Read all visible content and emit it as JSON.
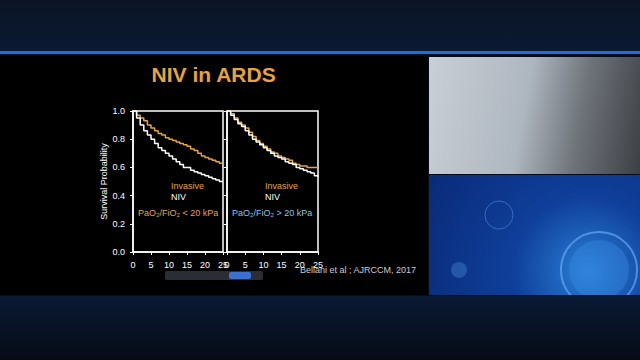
{
  "slide": {
    "title": "NIV in ARDS",
    "citation": "Bellani et al ; AJRCCM, 2017"
  },
  "chart_data": [
    {
      "type": "line",
      "ylabel": "Survival Probability",
      "line_style": "step",
      "x": [
        0,
        1,
        2,
        3,
        4,
        5,
        6,
        7,
        8,
        9,
        10,
        11,
        12,
        13,
        14,
        15,
        16,
        17,
        18,
        19,
        20,
        21,
        22,
        23,
        24,
        25
      ],
      "series": [
        {
          "name": "Invasive",
          "color": "#e8a33c",
          "values": [
            1.0,
            0.97,
            0.95,
            0.93,
            0.9,
            0.88,
            0.86,
            0.84,
            0.83,
            0.81,
            0.8,
            0.79,
            0.78,
            0.77,
            0.76,
            0.75,
            0.73,
            0.72,
            0.7,
            0.68,
            0.67,
            0.66,
            0.65,
            0.64,
            0.63,
            0.62
          ]
        },
        {
          "name": "NIV",
          "color": "#ffffff",
          "values": [
            1.0,
            0.95,
            0.9,
            0.86,
            0.83,
            0.8,
            0.77,
            0.74,
            0.72,
            0.7,
            0.68,
            0.66,
            0.64,
            0.62,
            0.6,
            0.6,
            0.58,
            0.57,
            0.56,
            0.55,
            0.54,
            0.53,
            0.52,
            0.51,
            0.5,
            0.5
          ]
        }
      ],
      "annotations": [
        {
          "text": "PaO₂/FiO₂ < 20 kPa",
          "color": "#e8a33c"
        }
      ],
      "xlim": [
        0,
        25
      ],
      "xticks": [
        0,
        5,
        10,
        15,
        20,
        25
      ],
      "ylim": [
        0,
        1
      ],
      "yticks": [
        {
          "value": 0,
          "label": "0.0"
        },
        {
          "value": 0.2,
          "label": "0.2"
        },
        {
          "value": 0.4,
          "label": "0.4"
        },
        {
          "value": 0.6,
          "label": "0.6"
        },
        {
          "value": 0.8,
          "label": "0.8"
        },
        {
          "value": 1,
          "label": "1.0"
        }
      ]
    },
    {
      "type": "line",
      "line_style": "step",
      "tick_labels": "x",
      "x": [
        0,
        1,
        2,
        3,
        4,
        5,
        6,
        7,
        8,
        9,
        10,
        11,
        12,
        13,
        14,
        15,
        16,
        17,
        18,
        19,
        20,
        21,
        22,
        23,
        24,
        25
      ],
      "series": [
        {
          "name": "Invasive",
          "color": "#e8a33c",
          "values": [
            1.0,
            0.98,
            0.95,
            0.92,
            0.9,
            0.88,
            0.85,
            0.82,
            0.79,
            0.77,
            0.75,
            0.73,
            0.71,
            0.7,
            0.68,
            0.67,
            0.66,
            0.65,
            0.63,
            0.62,
            0.61,
            0.61,
            0.6,
            0.6,
            0.6,
            0.6
          ]
        },
        {
          "name": "NIV",
          "color": "#ffffff",
          "values": [
            1.0,
            0.97,
            0.94,
            0.91,
            0.89,
            0.86,
            0.83,
            0.8,
            0.78,
            0.76,
            0.74,
            0.72,
            0.7,
            0.68,
            0.67,
            0.66,
            0.64,
            0.63,
            0.62,
            0.6,
            0.59,
            0.58,
            0.57,
            0.56,
            0.54,
            0.53
          ]
        }
      ],
      "annotations": [
        {
          "text": "PaO₂/FiO₂ > 20 kPa",
          "color": "#7fc8e8"
        }
      ],
      "xlim": [
        0,
        25
      ],
      "xticks": [
        0,
        5,
        10,
        15,
        20,
        25
      ],
      "ylim": [
        0,
        1
      ],
      "yticks": [
        {
          "value": 0,
          "label": "0.0"
        },
        {
          "value": 0.2,
          "label": "0.2"
        },
        {
          "value": 0.4,
          "label": "0.4"
        },
        {
          "value": 0.6,
          "label": "0.6"
        },
        {
          "value": 0.8,
          "label": "0.8"
        },
        {
          "value": 1,
          "label": "1.0"
        }
      ]
    }
  ]
}
